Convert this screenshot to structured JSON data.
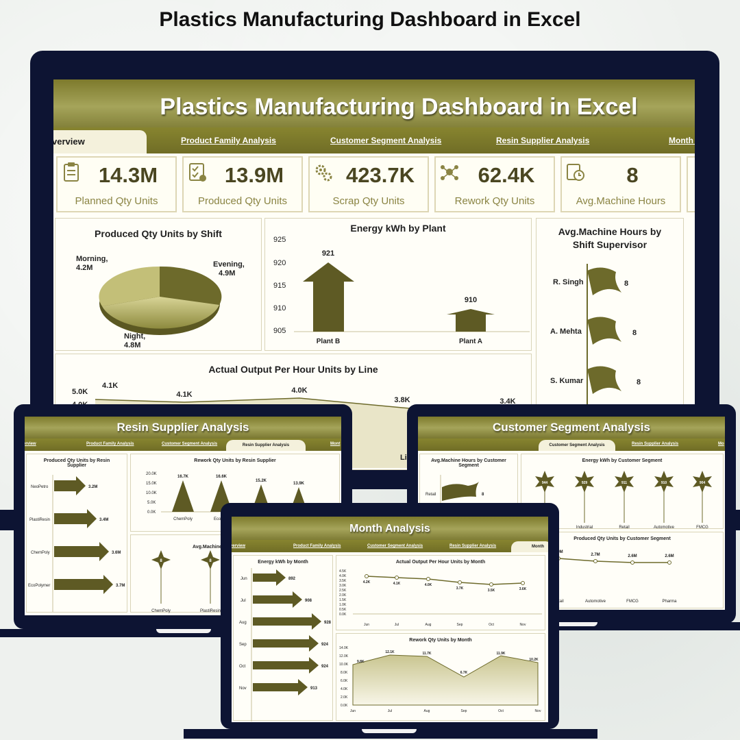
{
  "page_title": "Plastics Manufacturing Dashboard in Excel",
  "colors": {
    "olive": "#6f6c27",
    "olive_light": "#a5a45a",
    "device": "#0d1433",
    "label": "#8a8443"
  },
  "main": {
    "banner": "Plastics Manufacturing Dashboard in Excel",
    "tabs": [
      "verview",
      "Product Family Analysis",
      "Customer Segment Analysis",
      "Resin Supplier Analysis",
      "Month A"
    ],
    "kpis": [
      {
        "value": "14.3M",
        "label": "Planned Qty Units",
        "icon": "clipboard-icon"
      },
      {
        "value": "13.9M",
        "label": "Produced Qty Units",
        "icon": "checklist-icon"
      },
      {
        "value": "423.7K",
        "label": "Scrap Qty Units",
        "icon": "gears-icon"
      },
      {
        "value": "62.4K",
        "label": "Rework Qty Units",
        "icon": "network-icon"
      },
      {
        "value": "8",
        "label": "Avg.Machine Hours",
        "icon": "clock-icon"
      }
    ],
    "shift_pie": {
      "title": "Produced Qty Units by Shift",
      "labels": {
        "morning": "Morning,",
        "morning_v": "4.2M",
        "evening": "Evening,",
        "evening_v": "4.9M",
        "night": "Night,",
        "night_v": "4.8M"
      }
    },
    "energy_plant": {
      "title": "Energy kWh by Plant",
      "yticks": [
        "925",
        "920",
        "915",
        "910",
        "905"
      ],
      "plants": [
        "Plant B",
        "Plant A"
      ],
      "values_text": [
        "921",
        "910"
      ]
    },
    "supervisor": {
      "title": "Avg.Machine Hours by Shift Supervisor",
      "names": [
        "R. Singh",
        "A. Mehta",
        "S. Kumar"
      ],
      "values_text": [
        "8",
        "8",
        "8"
      ]
    },
    "output_line": {
      "title": "Actual Output Per Hour Units by Line",
      "yticks": [
        "5.0K",
        "4.0K"
      ],
      "labels": [
        "4.1K",
        "4.1K",
        "4.0K",
        "3.8K",
        "3.4K"
      ]
    }
  },
  "resin": {
    "banner": "Resin Supplier Analysis",
    "tabs": [
      "erview",
      "Product Family Analysis",
      "Customer Segment Analysis",
      "Resin Supplier Analysis",
      "Mont"
    ],
    "produced_title": "Produced Qty Units by Resin Supplier",
    "suppliers": [
      "NeoPetro",
      "PlastiResin",
      "ChemPoly",
      "EcoPolymer"
    ],
    "produced_text": [
      "3.2M",
      "3.4M",
      "3.6M",
      "3.7M"
    ],
    "rework_title": "Rework Qty Units by Resin Supplier",
    "rework_yticks": [
      "20.0K",
      "15.0K",
      "10.0K",
      "5.0K",
      "0.0K"
    ],
    "rework_text": [
      "16.7K",
      "16.6K",
      "15.2K",
      "13.9K"
    ],
    "rework_cats": [
      "ChemPoly",
      "EcoPoly"
    ],
    "machine_title": "Avg.Machine",
    "machine_cats": [
      "ChemPoly",
      "PlastiResin"
    ],
    "machine_text": [
      "8",
      "8"
    ]
  },
  "customer": {
    "banner": "Customer Segment Analysis",
    "tabs": [
      "Customer Segment Analysis",
      "Resin Supplier Analysis",
      "Mo"
    ],
    "machine_title": "Avg.Machine Hours by Customer Segment",
    "machine_cat": "Retail",
    "machine_val": "8",
    "energy_title": "Energy kWh by Customer Segment",
    "energy_text": [
      "944",
      "929",
      "911",
      "910",
      "904"
    ],
    "energy_cats": [
      "Industrial",
      "Retail",
      "Automotive",
      "FMCG"
    ],
    "produced_title": "Produced Qty Units by Customer Segment",
    "produced_text": [
      "2.9M",
      "2.7M",
      "2.6M",
      "2.6M"
    ],
    "produced_cats": [
      "strial",
      "Retail",
      "Automotive",
      "FMCG",
      "Pharma"
    ],
    "line_fragment": "Lin"
  },
  "month": {
    "banner": "Month Analysis",
    "tabs": [
      "verview",
      "Product Family Analysis",
      "Customer Segment Analysis",
      "Resin Supplier Analysis",
      "Month"
    ],
    "months": [
      "Jun",
      "Jul",
      "Aug",
      "Sep",
      "Oct",
      "Nov"
    ],
    "energy_title": "Energy kWh by Month",
    "energy_text": [
      "892",
      "908",
      "928",
      "924",
      "924",
      "913"
    ],
    "output_title": "Actual Output Per Hour Units by Month",
    "output_yticks": [
      "4.5K",
      "4.0K",
      "3.5K",
      "3.0K",
      "2.5K",
      "2.0K",
      "1.5K",
      "1.0K",
      "0.5K",
      "0.0K"
    ],
    "output_text": [
      "4.2K",
      "4.1K",
      "4.0K",
      "3.7K",
      "3.5K",
      "3.6K"
    ],
    "rework_title": "Rework Qty Units by Month",
    "rework_yticks": [
      "14.0K",
      "12.0K",
      "10.0K",
      "8.0K",
      "6.0K",
      "4.0K",
      "2.0K",
      "0.0K"
    ],
    "rework_text": [
      "9.8K",
      "12.1K",
      "11.7K",
      "6.7K",
      "11.9K",
      "10.2K"
    ]
  }
}
